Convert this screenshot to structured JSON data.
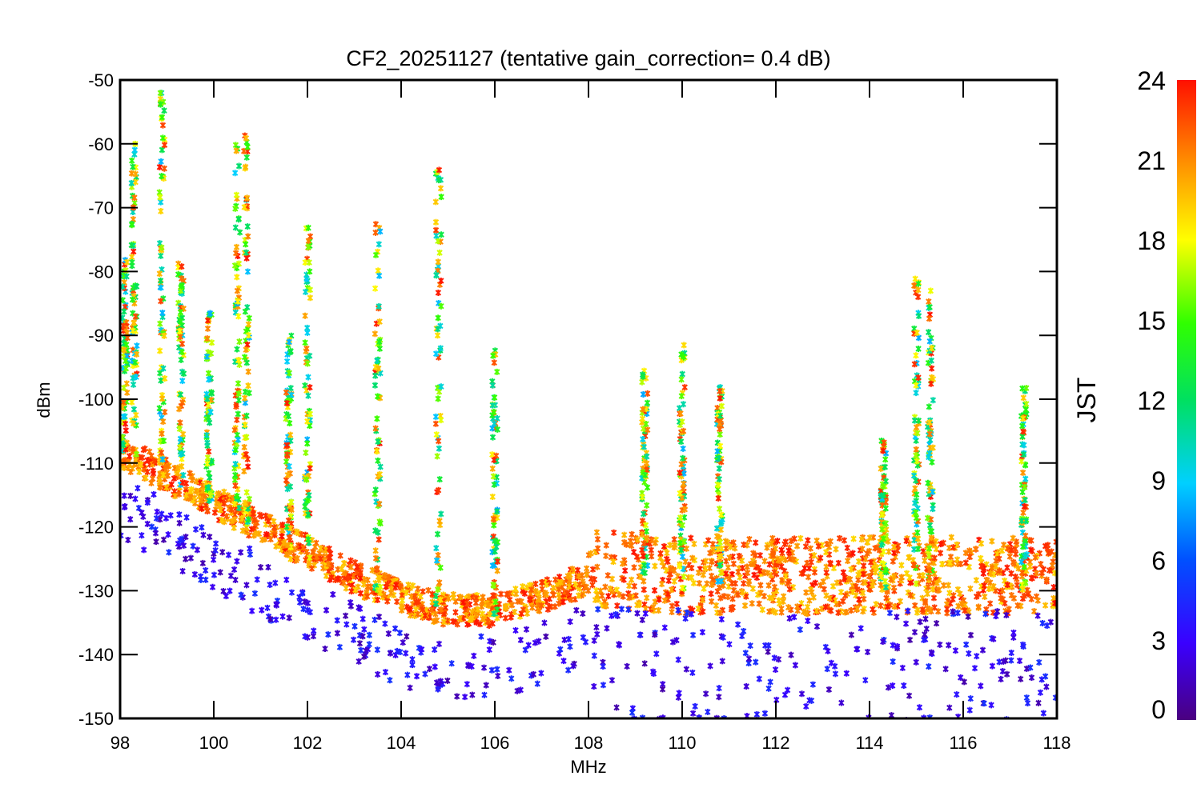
{
  "chart_data": {
    "type": "scatter",
    "title": "CF2_20251127 (tentative gain_correction=  0.4 dB)",
    "xlabel": "MHz",
    "ylabel": "dBm",
    "xlim": [
      98,
      118
    ],
    "ylim": [
      -150,
      -50
    ],
    "x_ticks": [
      "98",
      "100",
      "102",
      "104",
      "106",
      "108",
      "110",
      "112",
      "114",
      "116",
      "118"
    ],
    "y_ticks": [
      "-50",
      "-60",
      "-70",
      "-80",
      "-90",
      "-100",
      "-110",
      "-120",
      "-130",
      "-140",
      "-150"
    ],
    "colorbar": {
      "label": "JST",
      "range": [
        0,
        24
      ],
      "ticks": [
        "24",
        "21",
        "18",
        "15",
        "12",
        "9",
        "6",
        "3",
        "0"
      ]
    },
    "noise_floor": {
      "x": [
        98,
        99,
        100,
        101,
        102,
        103,
        104,
        105,
        106,
        107,
        108,
        110,
        112,
        114,
        116,
        118
      ],
      "y": [
        -109,
        -113,
        -117,
        -121,
        -125,
        -129,
        -132,
        -134,
        -134,
        -132,
        -129,
        -130,
        -130,
        -130,
        -130,
        -130
      ]
    },
    "signals": [
      {
        "freq_mhz": 98.1,
        "peak_dbm": -78
      },
      {
        "freq_mhz": 98.3,
        "peak_dbm": -60
      },
      {
        "freq_mhz": 98.9,
        "peak_dbm": -50
      },
      {
        "freq_mhz": 99.3,
        "peak_dbm": -78
      },
      {
        "freq_mhz": 99.9,
        "peak_dbm": -86
      },
      {
        "freq_mhz": 100.5,
        "peak_dbm": -60
      },
      {
        "freq_mhz": 100.7,
        "peak_dbm": -58
      },
      {
        "freq_mhz": 101.6,
        "peak_dbm": -90
      },
      {
        "freq_mhz": 102.0,
        "peak_dbm": -73
      },
      {
        "freq_mhz": 103.5,
        "peak_dbm": -72
      },
      {
        "freq_mhz": 104.8,
        "peak_dbm": -64
      },
      {
        "freq_mhz": 106.0,
        "peak_dbm": -92
      },
      {
        "freq_mhz": 109.2,
        "peak_dbm": -95
      },
      {
        "freq_mhz": 110.0,
        "peak_dbm": -91
      },
      {
        "freq_mhz": 110.8,
        "peak_dbm": -98
      },
      {
        "freq_mhz": 114.3,
        "peak_dbm": -106
      },
      {
        "freq_mhz": 115.0,
        "peak_dbm": -81
      },
      {
        "freq_mhz": 115.3,
        "peak_dbm": -81
      },
      {
        "freq_mhz": 117.3,
        "peak_dbm": -98
      }
    ]
  }
}
